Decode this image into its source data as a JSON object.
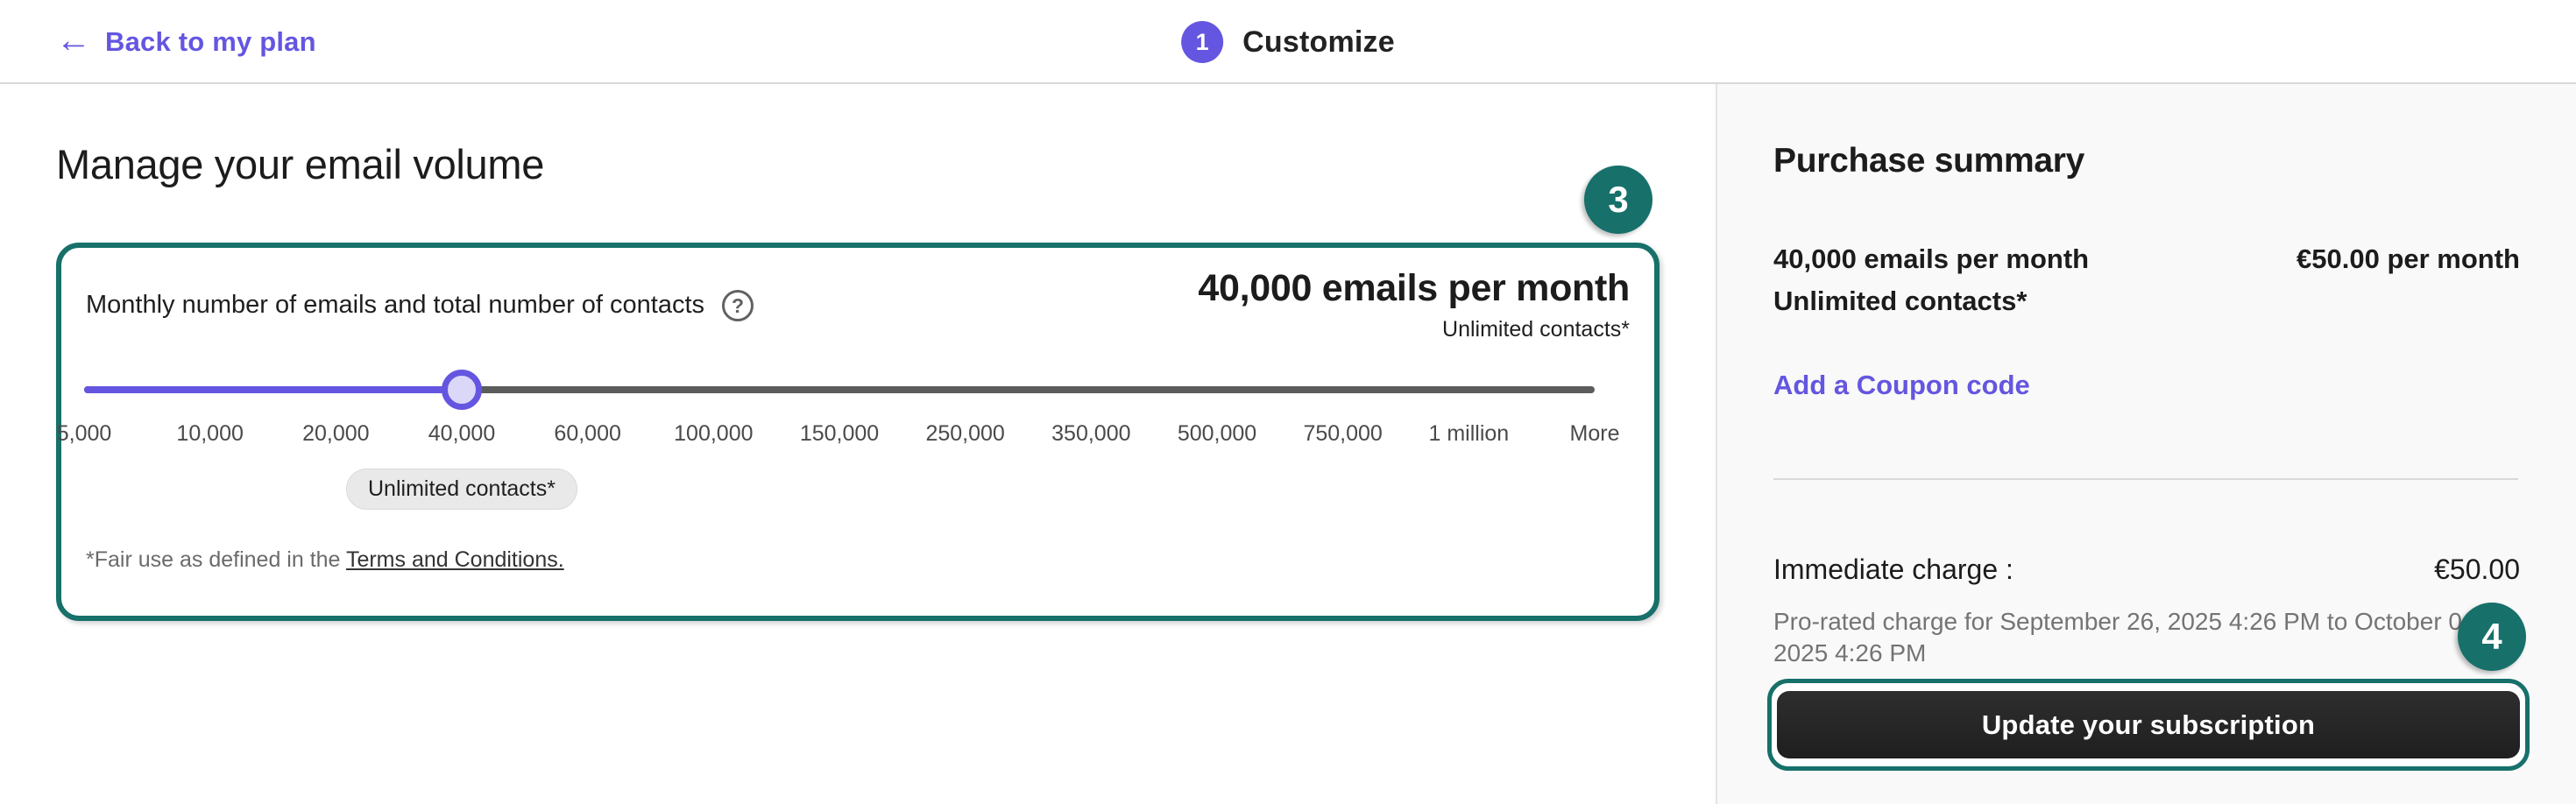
{
  "topbar": {
    "back_label": "Back to my plan",
    "step_number": "1",
    "step_label": "Customize"
  },
  "main": {
    "heading": "Manage your email volume",
    "card": {
      "label": "Monthly number of emails and total number of contacts",
      "value_title": "40,000 emails per month",
      "value_subtitle": "Unlimited contacts*",
      "slider": {
        "labels": [
          "5,000",
          "10,000",
          "20,000",
          "40,000",
          "60,000",
          "100,000",
          "150,000",
          "250,000",
          "350,000",
          "500,000",
          "750,000",
          "1 million",
          "More"
        ],
        "selected_value": "40,000",
        "selected_index": 3,
        "tooltip": "Unlimited contacts*"
      },
      "footnote_prefix": "*Fair use as defined in the ",
      "footnote_link": "Terms and Conditions."
    }
  },
  "annotations": {
    "card_badge": "3",
    "button_badge": "4"
  },
  "summary": {
    "title": "Purchase summary",
    "plan_line": "40,000 emails per month",
    "plan_price": "€50.00 per month",
    "plan_contacts": "Unlimited contacts*",
    "coupon_link": "Add a Coupon code",
    "immediate_label": "Immediate charge :",
    "immediate_value": "€50.00",
    "prorate_text": "Pro-rated charge for September 26, 2025 4:26 PM to October 04, 2025 4:26 PM",
    "button_label": "Update your subscription"
  },
  "icons": {
    "back_arrow": "←",
    "help": "?"
  },
  "colors": {
    "accent_purple": "#6456e0",
    "annotation_teal": "#17706a",
    "button_bg": "#262626",
    "panel_bg": "#f9f9f9",
    "slider_track_gray": "#5c5c5c",
    "slider_handle_fill": "#dbd7f8"
  }
}
